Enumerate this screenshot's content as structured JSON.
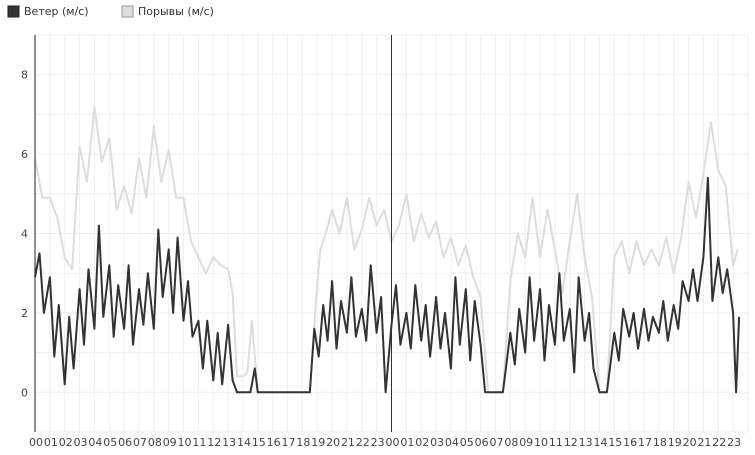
{
  "legend": {
    "wind_label": "Ветер (м/с)",
    "gust_label": "Порывы (м/с)"
  },
  "colors": {
    "wind": "#333333",
    "gust": "#dddddd",
    "grid": "#efefef",
    "axis": "#222222",
    "divider": "#333333"
  },
  "chart_data": {
    "type": "line",
    "title": "",
    "xlabel": "",
    "ylabel": "",
    "ylim": [
      -1,
      9
    ],
    "yticks": [
      0,
      2,
      4,
      6,
      8
    ],
    "xlim": [
      0,
      48
    ],
    "xtick_labels": [
      "00",
      "01",
      "02",
      "03",
      "04",
      "05",
      "06",
      "07",
      "08",
      "09",
      "10",
      "11",
      "12",
      "13",
      "14",
      "15",
      "16",
      "17",
      "18",
      "19",
      "20",
      "21",
      "22",
      "23",
      "00",
      "01",
      "02",
      "03",
      "04",
      "05",
      "06",
      "07",
      "08",
      "09",
      "10",
      "11",
      "12",
      "13",
      "14",
      "15",
      "16",
      "17",
      "18",
      "19",
      "20",
      "21",
      "22",
      "23"
    ],
    "day_divider_hour": 24,
    "grid": true,
    "legend_position": "top-left",
    "series": [
      {
        "name": "Порывы (м/с)",
        "color": "#dddddd",
        "points": [
          [
            0,
            5.9
          ],
          [
            0.5,
            4.9
          ],
          [
            1,
            4.9
          ],
          [
            1.5,
            4.4
          ],
          [
            2,
            3.4
          ],
          [
            2.5,
            3.1
          ],
          [
            3,
            6.2
          ],
          [
            3.5,
            5.3
          ],
          [
            4,
            7.2
          ],
          [
            4.5,
            5.8
          ],
          [
            5,
            6.4
          ],
          [
            5.5,
            4.6
          ],
          [
            6,
            5.2
          ],
          [
            6.5,
            4.5
          ],
          [
            7,
            5.9
          ],
          [
            7.5,
            4.9
          ],
          [
            8,
            6.7
          ],
          [
            8.5,
            5.3
          ],
          [
            9,
            6.1
          ],
          [
            9.5,
            4.9
          ],
          [
            10,
            4.9
          ],
          [
            10.5,
            3.8
          ],
          [
            11,
            3.4
          ],
          [
            11.5,
            3.0
          ],
          [
            12,
            3.4
          ],
          [
            12.5,
            3.2
          ],
          [
            13,
            3.1
          ],
          [
            13.3,
            2.5
          ],
          [
            13.6,
            0.4
          ],
          [
            14,
            0.4
          ],
          [
            14.3,
            0.5
          ],
          [
            14.6,
            1.8
          ],
          [
            15,
            0.0
          ],
          [
            15.5,
            0.0
          ],
          [
            16,
            0.0
          ],
          [
            17,
            0.0
          ],
          [
            18,
            0.0
          ],
          [
            18.5,
            0.0
          ],
          [
            18.9,
            2.2
          ],
          [
            19.2,
            3.6
          ],
          [
            19.5,
            3.9
          ],
          [
            20,
            4.6
          ],
          [
            20.5,
            4.0
          ],
          [
            21,
            4.9
          ],
          [
            21.5,
            3.6
          ],
          [
            22,
            4.1
          ],
          [
            22.5,
            4.9
          ],
          [
            23,
            4.2
          ],
          [
            23.5,
            4.6
          ],
          [
            24,
            3.8
          ],
          [
            24.5,
            4.2
          ],
          [
            25,
            5.0
          ],
          [
            25.5,
            3.8
          ],
          [
            26,
            4.5
          ],
          [
            26.5,
            3.9
          ],
          [
            27,
            4.3
          ],
          [
            27.5,
            3.4
          ],
          [
            28,
            3.9
          ],
          [
            28.5,
            3.2
          ],
          [
            29,
            3.7
          ],
          [
            29.5,
            2.9
          ],
          [
            30,
            2.4
          ],
          [
            30.5,
            0.0
          ],
          [
            31,
            0.0
          ],
          [
            31.5,
            0.0
          ],
          [
            32,
            2.8
          ],
          [
            32.5,
            4.0
          ],
          [
            33,
            3.4
          ],
          [
            33.5,
            4.9
          ],
          [
            34,
            3.4
          ],
          [
            34.5,
            4.6
          ],
          [
            35,
            3.6
          ],
          [
            35.5,
            2.5
          ],
          [
            36,
            3.8
          ],
          [
            36.5,
            5.0
          ],
          [
            37,
            3.4
          ],
          [
            37.5,
            2.4
          ],
          [
            38,
            0.0
          ],
          [
            38.5,
            0.0
          ],
          [
            39,
            3.4
          ],
          [
            39.5,
            3.8
          ],
          [
            40,
            3.0
          ],
          [
            40.5,
            3.8
          ],
          [
            41,
            3.2
          ],
          [
            41.5,
            3.6
          ],
          [
            42,
            3.2
          ],
          [
            42.5,
            3.9
          ],
          [
            43,
            3.0
          ],
          [
            43.5,
            3.9
          ],
          [
            44,
            5.3
          ],
          [
            44.5,
            4.4
          ],
          [
            45,
            5.5
          ],
          [
            45.5,
            6.8
          ],
          [
            46,
            5.6
          ],
          [
            46.5,
            5.2
          ],
          [
            47,
            3.2
          ],
          [
            47.3,
            3.6
          ]
        ]
      },
      {
        "name": "Ветер (м/с)",
        "color": "#333333",
        "points": [
          [
            0,
            2.9
          ],
          [
            0.3,
            3.5
          ],
          [
            0.6,
            2.0
          ],
          [
            1,
            2.9
          ],
          [
            1.3,
            0.9
          ],
          [
            1.6,
            2.2
          ],
          [
            2,
            0.2
          ],
          [
            2.3,
            1.9
          ],
          [
            2.6,
            0.6
          ],
          [
            3,
            2.6
          ],
          [
            3.3,
            1.2
          ],
          [
            3.6,
            3.1
          ],
          [
            4,
            1.6
          ],
          [
            4.3,
            4.2
          ],
          [
            4.6,
            1.9
          ],
          [
            5,
            3.2
          ],
          [
            5.3,
            1.4
          ],
          [
            5.6,
            2.7
          ],
          [
            6,
            1.6
          ],
          [
            6.3,
            3.2
          ],
          [
            6.6,
            1.2
          ],
          [
            7,
            2.6
          ],
          [
            7.3,
            1.7
          ],
          [
            7.6,
            3.0
          ],
          [
            8,
            1.6
          ],
          [
            8.3,
            4.1
          ],
          [
            8.6,
            2.4
          ],
          [
            9,
            3.6
          ],
          [
            9.3,
            2.0
          ],
          [
            9.6,
            3.9
          ],
          [
            10,
            1.8
          ],
          [
            10.3,
            2.8
          ],
          [
            10.6,
            1.4
          ],
          [
            11,
            1.8
          ],
          [
            11.3,
            0.6
          ],
          [
            11.6,
            1.8
          ],
          [
            12,
            0.3
          ],
          [
            12.3,
            1.5
          ],
          [
            12.6,
            0.2
          ],
          [
            13,
            1.7
          ],
          [
            13.3,
            0.3
          ],
          [
            13.6,
            0.0
          ],
          [
            14,
            0.0
          ],
          [
            14.5,
            0.0
          ],
          [
            14.8,
            0.6
          ],
          [
            15,
            0.0
          ],
          [
            16,
            0.0
          ],
          [
            17,
            0.0
          ],
          [
            18,
            0.0
          ],
          [
            18.5,
            0.0
          ],
          [
            18.8,
            1.6
          ],
          [
            19.1,
            0.9
          ],
          [
            19.4,
            2.2
          ],
          [
            19.7,
            1.3
          ],
          [
            20,
            2.8
          ],
          [
            20.3,
            1.1
          ],
          [
            20.6,
            2.3
          ],
          [
            21,
            1.5
          ],
          [
            21.3,
            2.9
          ],
          [
            21.6,
            1.4
          ],
          [
            22,
            2.1
          ],
          [
            22.3,
            1.3
          ],
          [
            22.6,
            3.2
          ],
          [
            23,
            1.5
          ],
          [
            23.3,
            2.4
          ],
          [
            23.6,
            0.0
          ],
          [
            24,
            1.7
          ],
          [
            24.3,
            2.7
          ],
          [
            24.6,
            1.2
          ],
          [
            25,
            2.0
          ],
          [
            25.3,
            1.1
          ],
          [
            25.6,
            2.7
          ],
          [
            26,
            1.3
          ],
          [
            26.3,
            2.2
          ],
          [
            26.6,
            0.9
          ],
          [
            27,
            2.4
          ],
          [
            27.3,
            1.1
          ],
          [
            27.6,
            2.0
          ],
          [
            28,
            0.6
          ],
          [
            28.3,
            2.9
          ],
          [
            28.6,
            1.2
          ],
          [
            29,
            2.6
          ],
          [
            29.3,
            0.8
          ],
          [
            29.6,
            2.3
          ],
          [
            30,
            1.2
          ],
          [
            30.3,
            0.0
          ],
          [
            30.6,
            0.0
          ],
          [
            31,
            0.0
          ],
          [
            31.5,
            0.0
          ],
          [
            32,
            1.5
          ],
          [
            32.3,
            0.7
          ],
          [
            32.6,
            2.1
          ],
          [
            33,
            1.0
          ],
          [
            33.3,
            2.9
          ],
          [
            33.6,
            1.3
          ],
          [
            34,
            2.6
          ],
          [
            34.3,
            0.8
          ],
          [
            34.6,
            2.2
          ],
          [
            35,
            1.2
          ],
          [
            35.3,
            3.0
          ],
          [
            35.6,
            1.3
          ],
          [
            36,
            2.1
          ],
          [
            36.3,
            0.5
          ],
          [
            36.6,
            2.9
          ],
          [
            37,
            1.3
          ],
          [
            37.3,
            2.0
          ],
          [
            37.6,
            0.6
          ],
          [
            38,
            0.0
          ],
          [
            38.5,
            0.0
          ],
          [
            39,
            1.5
          ],
          [
            39.3,
            0.8
          ],
          [
            39.6,
            2.1
          ],
          [
            40,
            1.4
          ],
          [
            40.3,
            2.0
          ],
          [
            40.6,
            1.1
          ],
          [
            41,
            2.1
          ],
          [
            41.3,
            1.3
          ],
          [
            41.6,
            1.9
          ],
          [
            42,
            1.5
          ],
          [
            42.3,
            2.3
          ],
          [
            42.6,
            1.3
          ],
          [
            43,
            2.2
          ],
          [
            43.3,
            1.6
          ],
          [
            43.6,
            2.8
          ],
          [
            44,
            2.3
          ],
          [
            44.3,
            3.1
          ],
          [
            44.6,
            2.3
          ],
          [
            45,
            3.4
          ],
          [
            45.3,
            5.4
          ],
          [
            45.6,
            2.3
          ],
          [
            46,
            3.4
          ],
          [
            46.3,
            2.5
          ],
          [
            46.6,
            3.1
          ],
          [
            47,
            2.0
          ],
          [
            47.2,
            0.0
          ],
          [
            47.4,
            1.9
          ]
        ]
      }
    ]
  }
}
